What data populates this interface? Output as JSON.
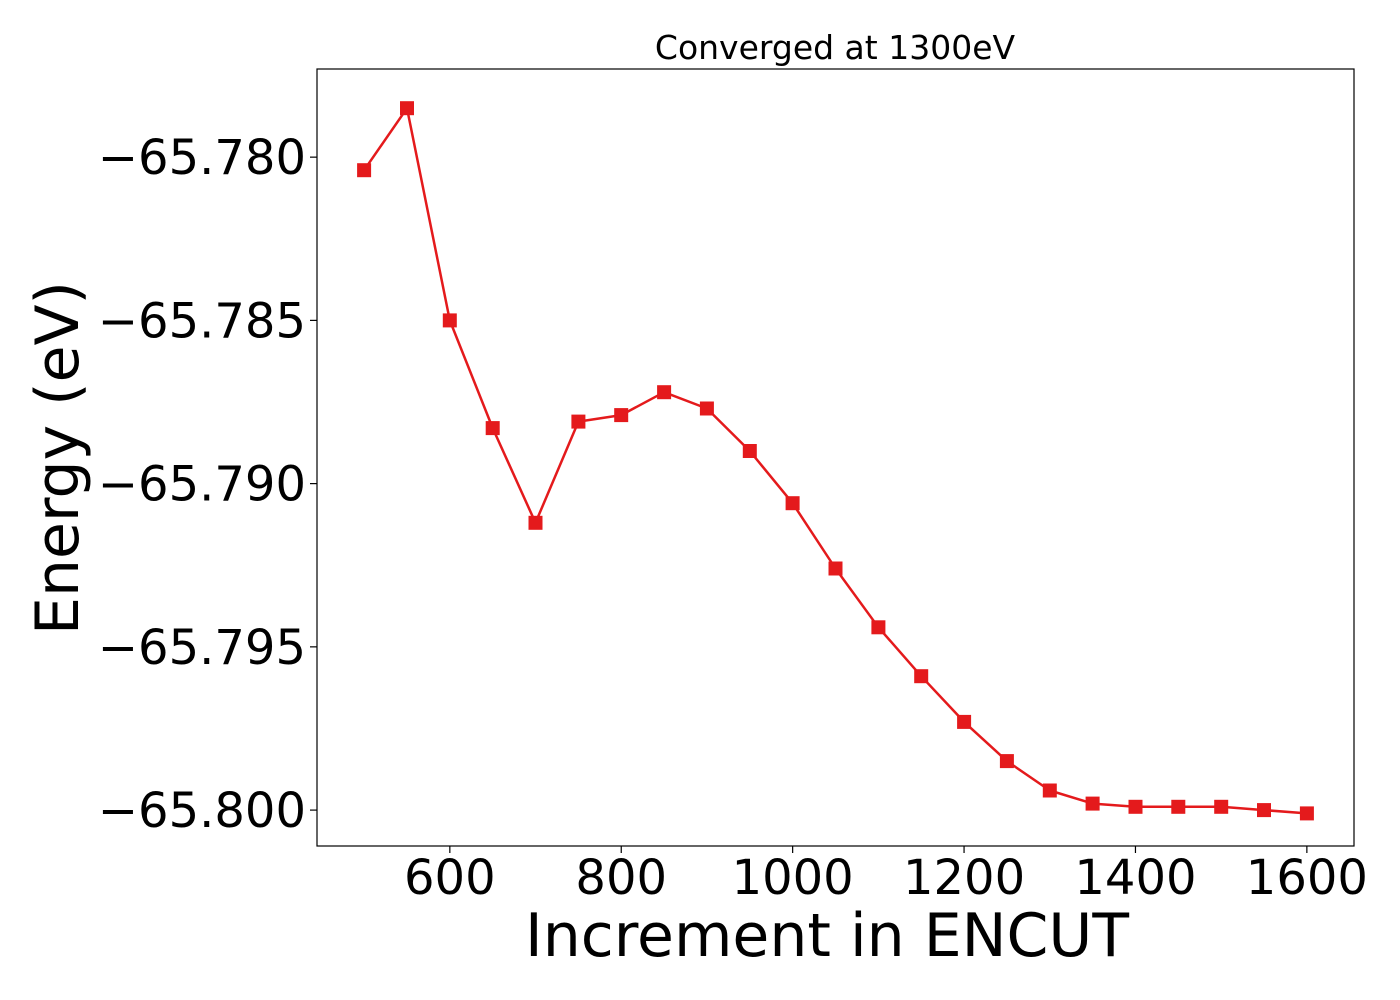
{
  "chart_data": {
    "type": "line",
    "title": "Converged at 1300eV",
    "xlabel": "Increment in ENCUT",
    "ylabel": "Energy (eV)",
    "xlim": [
      445,
      1655
    ],
    "ylim": [
      -65.8011,
      -65.7773
    ],
    "x_ticks": [
      600,
      800,
      1000,
      1200,
      1400,
      1600
    ],
    "x_tick_labels": [
      "600",
      "800",
      "1000",
      "1200",
      "1400",
      "1600"
    ],
    "y_ticks": [
      -65.78,
      -65.785,
      -65.79,
      -65.795,
      -65.8
    ],
    "y_tick_labels": [
      "−65.780",
      "−65.785",
      "−65.790",
      "−65.795",
      "−65.800"
    ],
    "grid": false,
    "series": [
      {
        "color": "#e41a1c",
        "marker": "square",
        "x": [
          500,
          550,
          600,
          650,
          700,
          750,
          800,
          850,
          900,
          950,
          1000,
          1050,
          1100,
          1150,
          1200,
          1250,
          1300,
          1350,
          1400,
          1450,
          1500,
          1550,
          1600
        ],
        "y": [
          -65.7804,
          -65.7785,
          -65.785,
          -65.7883,
          -65.7912,
          -65.7881,
          -65.7879,
          -65.7872,
          -65.7877,
          -65.789,
          -65.7906,
          -65.7926,
          -65.7944,
          -65.7959,
          -65.7973,
          -65.7985,
          -65.7994,
          -65.7998,
          -65.7999,
          -65.7999,
          -65.7999,
          -65.8,
          -65.8001
        ]
      }
    ]
  }
}
